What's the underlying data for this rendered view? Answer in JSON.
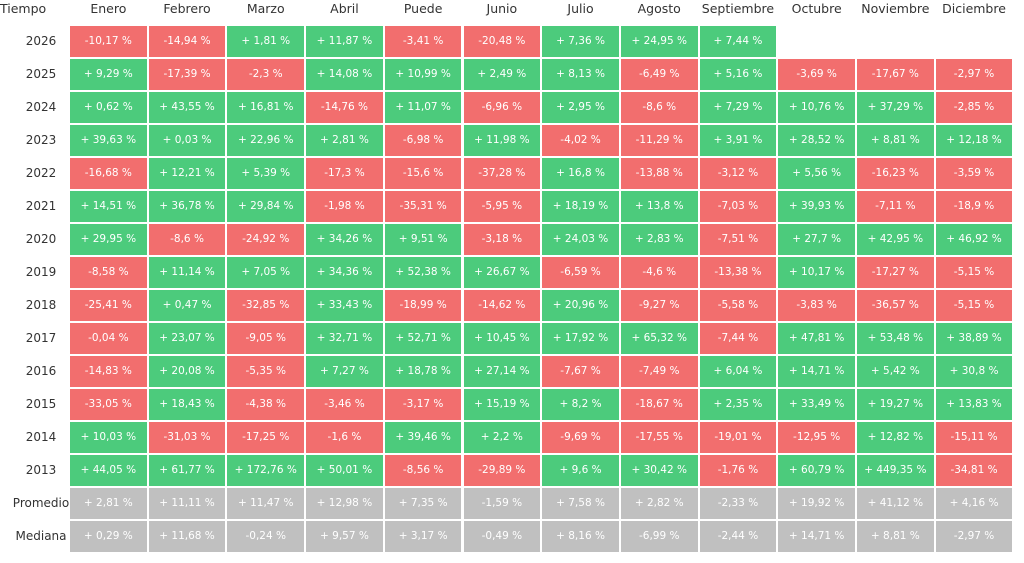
{
  "table": {
    "header": [
      "Tiempo",
      "Enero",
      "Febrero",
      "Marzo",
      "Abril",
      "Puede",
      "Junio",
      "Julio",
      "Agosto",
      "Septiembre",
      "Octubre",
      "Noviembre",
      "Diciembre"
    ],
    "rows": [
      [
        "2026",
        "-10,17 %",
        "-14,94 %",
        "+ 1,81 %",
        "+ 11,87 %",
        "-3,41 %",
        "-20,48 %",
        "+ 7,36 %",
        "+ 24,95 %",
        "+ 7,44 %",
        null,
        null,
        null
      ],
      [
        "2025",
        "+ 9,29 %",
        "-17,39 %",
        "-2,3 %",
        "+ 14,08 %",
        "+ 10,99 %",
        "+ 2,49 %",
        "+ 8,13 %",
        "-6,49 %",
        "+ 5,16 %",
        "-3,69 %",
        "-17,67 %",
        "-2,97 %"
      ],
      [
        "2024",
        "+ 0,62 %",
        "+ 43,55 %",
        "+ 16,81 %",
        "-14,76 %",
        "+ 11,07 %",
        "-6,96 %",
        "+ 2,95 %",
        "-8,6 %",
        "+ 7,29 %",
        "+ 10,76 %",
        "+ 37,29 %",
        "-2,85 %"
      ],
      [
        "2023",
        "+ 39,63 %",
        "+ 0,03 %",
        "+ 22,96 %",
        "+ 2,81 %",
        "-6,98 %",
        "+ 11,98 %",
        "-4,02 %",
        "-11,29 %",
        "+ 3,91 %",
        "+ 28,52 %",
        "+ 8,81 %",
        "+ 12,18 %"
      ],
      [
        "2022",
        "-16,68 %",
        "+ 12,21 %",
        "+ 5,39 %",
        "-17,3 %",
        "-15,6 %",
        "-37,28 %",
        "+ 16,8 %",
        "-13,88 %",
        "-3,12 %",
        "+ 5,56 %",
        "-16,23 %",
        "-3,59 %"
      ],
      [
        "2021",
        "+ 14,51 %",
        "+ 36,78 %",
        "+ 29,84 %",
        "-1,98 %",
        "-35,31 %",
        "-5,95 %",
        "+ 18,19 %",
        "+ 13,8 %",
        "-7,03 %",
        "+ 39,93 %",
        "-7,11 %",
        "-18,9 %"
      ],
      [
        "2020",
        "+ 29,95 %",
        "-8,6 %",
        "-24,92 %",
        "+ 34,26 %",
        "+ 9,51 %",
        "-3,18 %",
        "+ 24,03 %",
        "+ 2,83 %",
        "-7,51 %",
        "+ 27,7 %",
        "+ 42,95 %",
        "+ 46,92 %"
      ],
      [
        "2019",
        "-8,58 %",
        "+ 11,14 %",
        "+ 7,05 %",
        "+ 34,36 %",
        "+ 52,38 %",
        "+ 26,67 %",
        "-6,59 %",
        "-4,6 %",
        "-13,38 %",
        "+ 10,17 %",
        "-17,27 %",
        "-5,15 %"
      ],
      [
        "2018",
        "-25,41 %",
        "+ 0,47 %",
        "-32,85 %",
        "+ 33,43 %",
        "-18,99 %",
        "-14,62 %",
        "+ 20,96 %",
        "-9,27 %",
        "-5,58 %",
        "-3,83 %",
        "-36,57 %",
        "-5,15 %"
      ],
      [
        "2017",
        "-0,04 %",
        "+ 23,07 %",
        "-9,05 %",
        "+ 32,71 %",
        "+ 52,71 %",
        "+ 10,45 %",
        "+ 17,92 %",
        "+ 65,32 %",
        "-7,44 %",
        "+ 47,81 %",
        "+ 53,48 %",
        "+ 38,89 %"
      ],
      [
        "2016",
        "-14,83 %",
        "+ 20,08 %",
        "-5,35 %",
        "+ 7,27 %",
        "+ 18,78 %",
        "+ 27,14 %",
        "-7,67 %",
        "-7,49 %",
        "+ 6,04 %",
        "+ 14,71 %",
        "+ 5,42 %",
        "+ 30,8 %"
      ],
      [
        "2015",
        "-33,05 %",
        "+ 18,43 %",
        "-4,38 %",
        "-3,46 %",
        "-3,17 %",
        "+ 15,19 %",
        "+ 8,2 %",
        "-18,67 %",
        "+ 2,35 %",
        "+ 33,49 %",
        "+ 19,27 %",
        "+ 13,83 %"
      ],
      [
        "2014",
        "+ 10,03 %",
        "-31,03 %",
        "-17,25 %",
        "-1,6 %",
        "+ 39,46 %",
        "+ 2,2 %",
        "-9,69 %",
        "-17,55 %",
        "-19,01 %",
        "-12,95 %",
        "+ 12,82 %",
        "-15,11 %"
      ],
      [
        "2013",
        "+ 44,05 %",
        "+ 61,77 %",
        "+ 172,76 %",
        "+ 50,01 %",
        "-8,56 %",
        "-29,89 %",
        "+ 9,6 %",
        "+ 30,42 %",
        "-1,76 %",
        "+ 60,79 %",
        "+ 449,35 %",
        "-34,81 %"
      ]
    ],
    "summary_rows": [
      [
        "Promedio",
        "+ 2,81 %",
        "+ 11,11 %",
        "+ 11,47 %",
        "+ 12,98 %",
        "+ 7,35 %",
        "-1,59 %",
        "+ 7,58 %",
        "+ 2,82 %",
        "-2,33 %",
        "+ 19,92 %",
        "+ 41,12 %",
        "+ 4,16 %"
      ],
      [
        "Mediana",
        "+ 0,29 %",
        "+ 11,68 %",
        "-0,24 %",
        "+ 9,57 %",
        "+ 3,17 %",
        "-0,49 %",
        "+ 8,16 %",
        "-6,99 %",
        "-2,44 %",
        "+ 14,71 %",
        "+ 8,81 %",
        "-2,97 %"
      ]
    ]
  }
}
